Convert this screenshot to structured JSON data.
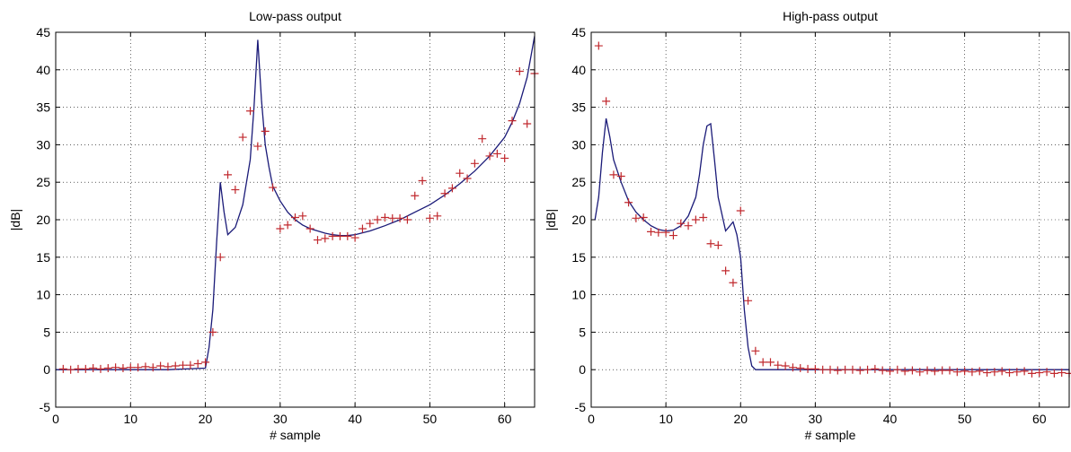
{
  "chart_data": [
    {
      "type": "line",
      "title": "Low-pass output",
      "xlabel": "# sample",
      "ylabel": "|dB|",
      "xlim": [
        0,
        64
      ],
      "ylim": [
        -5,
        45
      ],
      "xticks": [
        0,
        10,
        20,
        30,
        40,
        50,
        60
      ],
      "yticks": [
        -5,
        0,
        5,
        10,
        15,
        20,
        25,
        30,
        35,
        40,
        45
      ],
      "grid": true,
      "colors": {
        "line": "#1a1a78",
        "marker": "#c0282d"
      },
      "series": [
        {
          "style": "line",
          "x": [
            0,
            5,
            10,
            15,
            20,
            20.5,
            21,
            21.5,
            22,
            22.5,
            23,
            24,
            25,
            26,
            26.5,
            27,
            27.5,
            28,
            28.5,
            29,
            30,
            31,
            32,
            33,
            34,
            35,
            36,
            37,
            38,
            39,
            40,
            42,
            44,
            46,
            48,
            50,
            52,
            54,
            56,
            58,
            60,
            61,
            62,
            63,
            64
          ],
          "y": [
            0,
            0,
            0,
            0,
            0.2,
            3,
            8,
            17,
            25,
            21,
            18,
            19,
            22,
            28,
            35,
            44,
            36,
            30,
            27,
            24.5,
            22.5,
            21,
            20,
            19.3,
            18.8,
            18.5,
            18.2,
            18,
            17.9,
            17.9,
            18,
            18.5,
            19.2,
            20,
            21,
            22,
            23.3,
            24.8,
            26.5,
            28.5,
            31,
            33,
            35.5,
            39,
            44.5
          ]
        },
        {
          "style": "markers",
          "marker": "+",
          "x": [
            1,
            2,
            3,
            4,
            5,
            6,
            7,
            8,
            9,
            10,
            11,
            12,
            13,
            14,
            15,
            16,
            17,
            18,
            19,
            20,
            21,
            22,
            23,
            24,
            25,
            26,
            27,
            28,
            29,
            30,
            31,
            32,
            33,
            34,
            35,
            36,
            37,
            38,
            39,
            40,
            41,
            42,
            43,
            44,
            45,
            46,
            47,
            48,
            49,
            50,
            51,
            52,
            53,
            54,
            55,
            56,
            57,
            58,
            59,
            60,
            61,
            62,
            63,
            64
          ],
          "y": [
            0.1,
            0,
            0.1,
            0.1,
            0.2,
            0.1,
            0.2,
            0.3,
            0.2,
            0.3,
            0.3,
            0.4,
            0.3,
            0.5,
            0.4,
            0.5,
            0.6,
            0.6,
            0.8,
            1,
            5,
            15,
            26,
            24,
            31,
            34.5,
            29.8,
            31.8,
            24.3,
            18.8,
            19.3,
            20.3,
            20.5,
            18.8,
            17.3,
            17.5,
            17.8,
            17.8,
            17.8,
            17.6,
            18.8,
            19.5,
            20,
            20.3,
            20.2,
            20.2,
            20,
            23.2,
            25.2,
            20.2,
            20.5,
            23.5,
            24.2,
            26.2,
            25.5,
            27.5,
            30.8,
            28.5,
            28.8,
            28.2,
            33.2,
            39.8,
            32.8,
            39.5
          ]
        }
      ]
    },
    {
      "type": "line",
      "title": "High-pass output",
      "xlabel": "# sample",
      "ylabel": "|dB|",
      "xlim": [
        0,
        64
      ],
      "ylim": [
        -5,
        45
      ],
      "xticks": [
        0,
        10,
        20,
        30,
        40,
        50,
        60
      ],
      "yticks": [
        -5,
        0,
        5,
        10,
        15,
        20,
        25,
        30,
        35,
        40,
        45
      ],
      "grid": true,
      "colors": {
        "line": "#1a1a78",
        "marker": "#c0282d"
      },
      "series": [
        {
          "style": "line",
          "x": [
            0.5,
            1,
            1.5,
            2,
            2.5,
            3,
            4,
            5,
            6,
            7,
            8,
            9,
            10,
            11,
            12,
            13,
            14,
            14.5,
            15,
            15.5,
            16,
            16.5,
            17,
            18,
            19,
            19.5,
            20,
            20.5,
            21,
            21.5,
            22,
            23,
            25,
            30,
            40,
            50,
            64
          ],
          "y": [
            20,
            23,
            29,
            33.5,
            31,
            28,
            25,
            22.5,
            21,
            20,
            19.2,
            18.7,
            18.5,
            18.6,
            19.2,
            20.5,
            23,
            26,
            30,
            32.5,
            32.8,
            28,
            23,
            18.5,
            19.7,
            18,
            15,
            8,
            3,
            0.5,
            0,
            0,
            0,
            0,
            0,
            0,
            0
          ]
        },
        {
          "style": "markers",
          "marker": "+",
          "x": [
            1,
            2,
            3,
            4,
            5,
            6,
            7,
            8,
            9,
            10,
            11,
            12,
            13,
            14,
            15,
            16,
            17,
            18,
            19,
            20,
            21,
            22,
            23,
            24,
            25,
            26,
            27,
            28,
            29,
            30,
            31,
            32,
            33,
            34,
            35,
            36,
            37,
            38,
            39,
            40,
            41,
            42,
            43,
            44,
            45,
            46,
            47,
            48,
            49,
            50,
            51,
            52,
            53,
            54,
            55,
            56,
            57,
            58,
            59,
            60,
            61,
            62,
            63,
            64
          ],
          "y": [
            43.2,
            35.8,
            26,
            25.8,
            22.3,
            20.2,
            20.3,
            18.4,
            18.3,
            18.3,
            17.9,
            19.5,
            19.2,
            20,
            20.3,
            16.8,
            16.6,
            13.2,
            11.6,
            21.2,
            9.2,
            2.5,
            1,
            1,
            0.6,
            0.5,
            0.3,
            0.2,
            0.1,
            0.1,
            0,
            0,
            -0.1,
            0,
            0,
            -0.1,
            0,
            0.1,
            -0.1,
            -0.2,
            0,
            -0.2,
            -0.1,
            -0.3,
            -0.1,
            -0.2,
            -0.1,
            -0.1,
            -0.3,
            -0.2,
            -0.3,
            -0.2,
            -0.4,
            -0.3,
            -0.2,
            -0.4,
            -0.3,
            -0.2,
            -0.5,
            -0.4,
            -0.3,
            -0.5,
            -0.4,
            -0.5
          ]
        }
      ]
    }
  ]
}
